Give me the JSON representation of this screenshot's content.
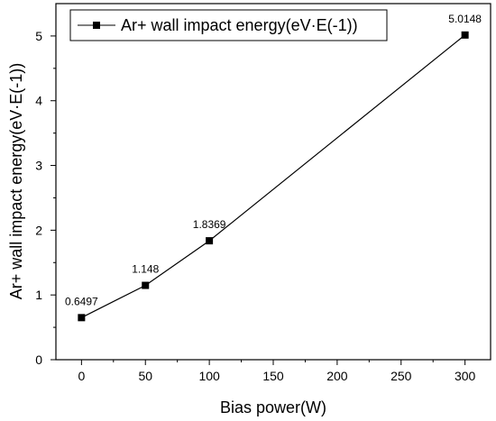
{
  "chart_data": {
    "type": "line",
    "xlabel": "Bias power(W)",
    "ylabel": "Ar+ wall impact energy(eV·E(-1))",
    "xlim": [
      -20,
      320
    ],
    "ylim": [
      0,
      5.5
    ],
    "x_ticks": [
      0,
      50,
      100,
      150,
      200,
      250,
      300
    ],
    "y_ticks": [
      0,
      1,
      2,
      3,
      4,
      5
    ],
    "x_tick_labels": [
      "0",
      "50",
      "100",
      "150",
      "200",
      "250",
      "300"
    ],
    "y_tick_labels": [
      "0",
      "1",
      "2",
      "3",
      "4",
      "5"
    ],
    "legend_position": "top-left",
    "grid": false,
    "series": [
      {
        "name": "Ar+ wall impact energy(eV·E(-1))",
        "color": "#000000",
        "marker": "square",
        "x": [
          0,
          50,
          100,
          300
        ],
        "y": [
          0.6497,
          1.148,
          1.8369,
          5.0148
        ],
        "labels": [
          "0.6497",
          "1.148",
          "1.8369",
          "5.0148"
        ]
      }
    ]
  }
}
